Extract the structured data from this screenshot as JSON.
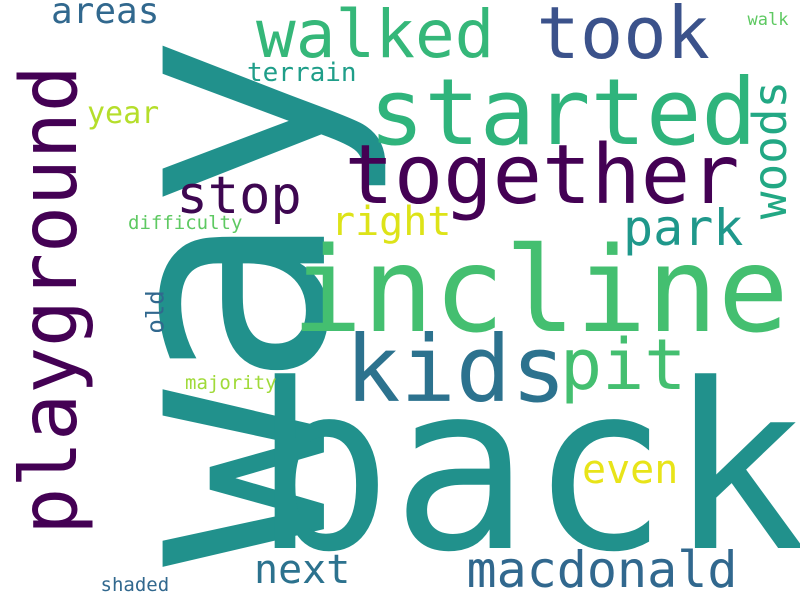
{
  "words": {
    "way": {
      "text": "way",
      "color": "#21918c"
    },
    "back": {
      "text": "back",
      "color": "#21918c"
    },
    "incline": {
      "text": "incline",
      "color": "#44bf70"
    },
    "started": {
      "text": "started",
      "color": "#2fb47c"
    },
    "together": {
      "text": "together",
      "color": "#440154"
    },
    "took": {
      "text": "took",
      "color": "#3b528b"
    },
    "walked": {
      "text": "walked",
      "color": "#35b779"
    },
    "playground": {
      "text": "playground",
      "color": "#440154"
    },
    "kids": {
      "text": "kids",
      "color": "#2c728e"
    },
    "pit": {
      "text": "pit",
      "color": "#44bf70"
    },
    "macdonald": {
      "text": "macdonald",
      "color": "#31688e"
    },
    "stop": {
      "text": "stop",
      "color": "#3e0751"
    },
    "park": {
      "text": "park",
      "color": "#1f988b"
    },
    "woods": {
      "text": "woods",
      "color": "#22a884"
    },
    "right": {
      "text": "right",
      "color": "#dde318"
    },
    "next": {
      "text": "next",
      "color": "#2c728e"
    },
    "even": {
      "text": "even",
      "color": "#e8e419"
    },
    "areas": {
      "text": "areas",
      "color": "#31688e"
    },
    "terrain": {
      "text": "terrain",
      "color": "#1f9e89"
    },
    "year": {
      "text": "year",
      "color": "#b5de2b"
    },
    "old": {
      "text": "old",
      "color": "#31688e"
    },
    "majority": {
      "text": "majority",
      "color": "#a0da39"
    },
    "difficulty": {
      "text": "difficulty",
      "color": "#5ec962"
    },
    "walk": {
      "text": "walk",
      "color": "#5ec962"
    },
    "shaded": {
      "text": "shaded",
      "color": "#31688e"
    }
  }
}
